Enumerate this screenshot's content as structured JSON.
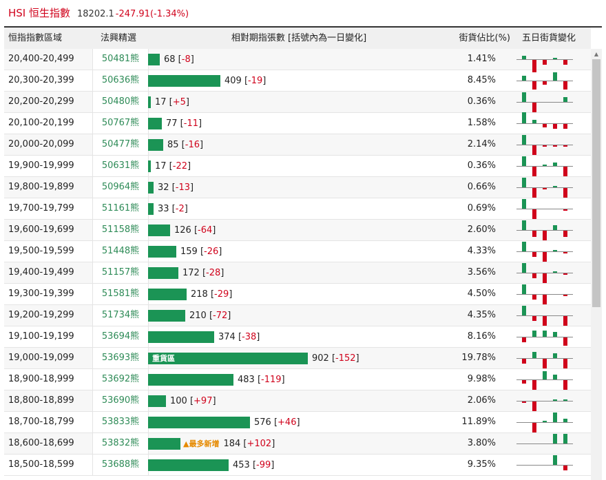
{
  "index": {
    "name": "HSI 恒生指數",
    "value": "18202.1",
    "change": "-247.91(-1.34%)"
  },
  "headers": {
    "range": "恒指指數區域",
    "code": "法興精選",
    "volume": "相對期指張數 [括號內為一日變化]",
    "pct": "街貨佔比(%)",
    "five_day": "五日街貨變化"
  },
  "colors": {
    "up": "#1b9455",
    "down": "#d0021b",
    "accent": "#e68a00"
  },
  "rows": [
    {
      "range": "20,400-20,499",
      "code": "50481熊",
      "volume": 68,
      "vol_text": "68",
      "chg": "-8",
      "pct": "1.41%",
      "d5": [
        2,
        -8,
        -3,
        1,
        -3
      ]
    },
    {
      "range": "20,300-20,399",
      "code": "50636熊",
      "volume": 409,
      "vol_text": "409",
      "chg": "-19",
      "pct": "8.45%",
      "d5": [
        3,
        -5,
        -2,
        5,
        -5
      ]
    },
    {
      "range": "20,200-20,299",
      "code": "50480熊",
      "volume": 17,
      "vol_text": "17",
      "chg": "+5",
      "pct": "0.36%",
      "d5": [
        6,
        -6,
        0,
        0,
        3
      ]
    },
    {
      "range": "20,100-20,199",
      "code": "50767熊",
      "volume": 77,
      "vol_text": "77",
      "chg": "-11",
      "pct": "1.58%",
      "d5": [
        7,
        2,
        -2,
        -3,
        -3
      ]
    },
    {
      "range": "20,000-20,099",
      "code": "50477熊",
      "volume": 85,
      "vol_text": "85",
      "chg": "-16",
      "pct": "2.14%",
      "d5": [
        6,
        -6,
        -1,
        -1,
        -1
      ]
    },
    {
      "range": "19,900-19,999",
      "code": "50631熊",
      "volume": 17,
      "vol_text": "17",
      "chg": "-22",
      "pct": "0.36%",
      "d5": [
        6,
        -6,
        1,
        2,
        -6
      ]
    },
    {
      "range": "19,800-19,899",
      "code": "50964熊",
      "volume": 32,
      "vol_text": "32",
      "chg": "-13",
      "pct": "0.66%",
      "d5": [
        6,
        -6,
        -1,
        1,
        -6
      ]
    },
    {
      "range": "19,700-19,799",
      "code": "51161熊",
      "volume": 33,
      "vol_text": "33",
      "chg": "-2",
      "pct": "0.69%",
      "d5": [
        6,
        -6,
        0,
        0,
        -1
      ]
    },
    {
      "range": "19,600-19,699",
      "code": "51158熊",
      "volume": 126,
      "vol_text": "126",
      "chg": "-64",
      "pct": "2.60%",
      "d5": [
        6,
        -4,
        -6,
        3,
        -4
      ]
    },
    {
      "range": "19,500-19,599",
      "code": "51448熊",
      "volume": 159,
      "vol_text": "159",
      "chg": "-26",
      "pct": "4.33%",
      "d5": [
        6,
        -3,
        -6,
        1,
        -1
      ]
    },
    {
      "range": "19,400-19,499",
      "code": "51157熊",
      "volume": 172,
      "vol_text": "172",
      "chg": "-28",
      "pct": "3.56%",
      "d5": [
        6,
        -3,
        -6,
        1,
        -1
      ]
    },
    {
      "range": "19,300-19,399",
      "code": "51581熊",
      "volume": 218,
      "vol_text": "218",
      "chg": "-29",
      "pct": "4.50%",
      "d5": [
        6,
        -3,
        -6,
        0,
        -1
      ]
    },
    {
      "range": "19,200-19,299",
      "code": "51734熊",
      "volume": 210,
      "vol_text": "210",
      "chg": "-72",
      "pct": "4.35%",
      "d5": [
        6,
        -3,
        -6,
        0,
        -6
      ]
    },
    {
      "range": "19,100-19,199",
      "code": "53694熊",
      "volume": 374,
      "vol_text": "374",
      "chg": "-38",
      "pct": "8.16%",
      "d5": [
        -3,
        4,
        4,
        3,
        -5
      ]
    },
    {
      "range": "19,000-19,099",
      "code": "53693熊",
      "volume": 902,
      "vol_text": "902",
      "chg": "-152",
      "pct": "19.78%",
      "tag": "重貨區",
      "d5": [
        -3,
        4,
        -6,
        3,
        -6
      ]
    },
    {
      "range": "18,900-18,999",
      "code": "53692熊",
      "volume": 483,
      "vol_text": "483",
      "chg": "-119",
      "pct": "9.98%",
      "d5": [
        -2,
        -6,
        5,
        3,
        -6
      ]
    },
    {
      "range": "18,800-18,899",
      "code": "53690熊",
      "volume": 100,
      "vol_text": "100",
      "chg": "+97",
      "pct": "2.06%",
      "d5": [
        -1,
        -6,
        0,
        1,
        1
      ]
    },
    {
      "range": "18,700-18,799",
      "code": "53833熊",
      "volume": 576,
      "vol_text": "576",
      "chg": "+46",
      "pct": "11.89%",
      "d5": [
        0,
        -6,
        1,
        6,
        2
      ]
    },
    {
      "range": "18,600-18,699",
      "code": "53832熊",
      "volume": 184,
      "vol_text": "184",
      "chg": "+102",
      "pct": "3.80%",
      "hot": "▲最多新增",
      "d5": [
        0,
        0,
        0,
        6,
        6
      ]
    },
    {
      "range": "18,500-18,599",
      "code": "53688熊",
      "volume": 453,
      "vol_text": "453",
      "chg": "-99",
      "pct": "9.35%",
      "d5": [
        0,
        0,
        0,
        6,
        -3
      ]
    }
  ]
}
